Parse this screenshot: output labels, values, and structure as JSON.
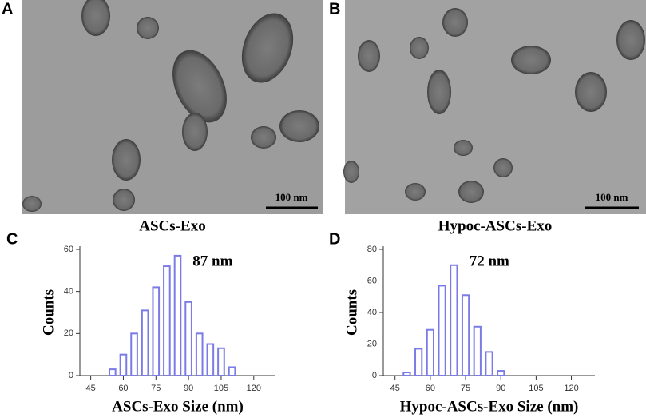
{
  "panels": [
    {
      "label": "A",
      "caption": "ASCs-Exo",
      "scale_bar": "100 nm"
    },
    {
      "label": "B",
      "caption": "Hypoc-ASCs-Exo",
      "scale_bar": "100 nm"
    }
  ],
  "chart_data": [
    {
      "type": "histogram",
      "label": "C",
      "annotation": "87 nm",
      "xlabel": "ASCs-Exo Size  (nm)",
      "ylabel": "Counts",
      "color": "#7b7be8",
      "bins": [
        52.5,
        57.5,
        62.5,
        67.5,
        72.5,
        77.5,
        82.5,
        87.5,
        92.5,
        97.5,
        102.5,
        107.5,
        112.5
      ],
      "values": [
        3,
        10,
        20,
        31,
        42,
        52,
        57,
        35,
        20,
        15,
        13,
        4
      ],
      "xlim": [
        40,
        130
      ],
      "xticks": [
        45,
        60,
        75,
        90,
        105,
        120
      ],
      "ylim": [
        0,
        60
      ],
      "yticks": [
        0,
        20,
        40,
        60
      ]
    },
    {
      "type": "histogram",
      "label": "D",
      "annotation": "72 nm",
      "xlabel": "Hypoc-ASCs-Exo Size  (nm)",
      "ylabel": "Counts",
      "color": "#7b7be8",
      "bins": [
        47.5,
        52.5,
        57.5,
        62.5,
        67.5,
        72.5,
        77.5,
        82.5,
        87.5,
        92.5
      ],
      "values": [
        2,
        17,
        29,
        57,
        70,
        51,
        31,
        15,
        3
      ],
      "xlim": [
        40,
        130
      ],
      "xticks": [
        45,
        60,
        75,
        90,
        105,
        120
      ],
      "ylim": [
        0,
        80
      ],
      "yticks": [
        0,
        20,
        40,
        60,
        80
      ]
    }
  ]
}
